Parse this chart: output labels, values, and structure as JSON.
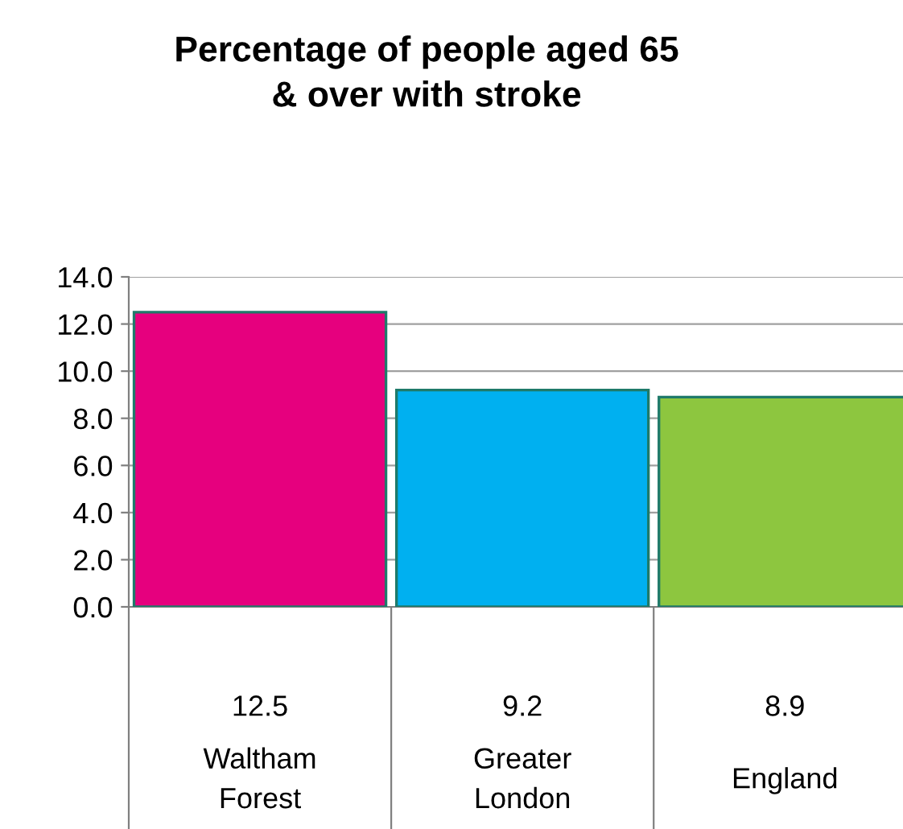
{
  "chart_data": {
    "type": "bar",
    "title": "Percentage of people aged 65\n& over with stroke",
    "categories": [
      "Waltham\nForest",
      "Greater\nLondon",
      "England"
    ],
    "values": [
      12.5,
      9.2,
      8.9
    ],
    "colors": [
      "#e6007e",
      "#00b0f0",
      "#8dc63f"
    ],
    "ylim": [
      0,
      14
    ],
    "yticks": [
      {
        "value": 0,
        "label": "0.0"
      },
      {
        "value": 2,
        "label": "2.0"
      },
      {
        "value": 4,
        "label": "4.0"
      },
      {
        "value": 6,
        "label": "6.0"
      },
      {
        "value": 8,
        "label": "8.0"
      },
      {
        "value": 10,
        "label": "10.0"
      },
      {
        "value": 12,
        "label": "12.0"
      },
      {
        "value": 14,
        "label": "14.0"
      }
    ],
    "grid": "y",
    "data_labels": true,
    "legend": false
  }
}
